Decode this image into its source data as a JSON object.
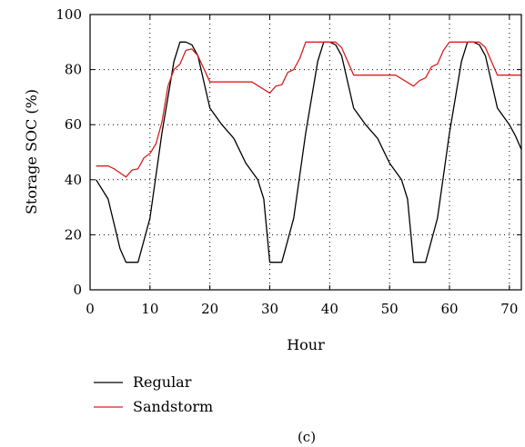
{
  "chart_data": {
    "type": "line",
    "xlabel": "Hour",
    "ylabel": "Storage SOC (%)",
    "xlim": [
      0,
      72
    ],
    "ylim": [
      0,
      100
    ],
    "xticks": [
      0,
      10,
      20,
      30,
      40,
      50,
      60,
      70
    ],
    "yticks": [
      0,
      20,
      40,
      60,
      80,
      100
    ],
    "grid": "dotted",
    "legend_position": "below-left",
    "caption": "(c)",
    "series": [
      {
        "name": "Regular",
        "color": "#000000",
        "points": [
          [
            1,
            40
          ],
          [
            3,
            33
          ],
          [
            5,
            15
          ],
          [
            6,
            10
          ],
          [
            8,
            10
          ],
          [
            10,
            26
          ],
          [
            12,
            57
          ],
          [
            14,
            83
          ],
          [
            15,
            90
          ],
          [
            16,
            90
          ],
          [
            17,
            89
          ],
          [
            18,
            85
          ],
          [
            20,
            66
          ],
          [
            22,
            60
          ],
          [
            24,
            55
          ],
          [
            26,
            46
          ],
          [
            28,
            40
          ],
          [
            29,
            33
          ],
          [
            30,
            10
          ],
          [
            32,
            10
          ],
          [
            34,
            26
          ],
          [
            36,
            57
          ],
          [
            38,
            83
          ],
          [
            39,
            90
          ],
          [
            40,
            90
          ],
          [
            41,
            89
          ],
          [
            42,
            85
          ],
          [
            44,
            66
          ],
          [
            46,
            60
          ],
          [
            48,
            55
          ],
          [
            50,
            46
          ],
          [
            52,
            40
          ],
          [
            53,
            33
          ],
          [
            54,
            10
          ],
          [
            56,
            10
          ],
          [
            58,
            26
          ],
          [
            60,
            57
          ],
          [
            62,
            83
          ],
          [
            63,
            90
          ],
          [
            64,
            90
          ],
          [
            65,
            89
          ],
          [
            66,
            85
          ],
          [
            68,
            66
          ],
          [
            70,
            60
          ],
          [
            71,
            56
          ],
          [
            72,
            51
          ]
        ]
      },
      {
        "name": "Sandstorm",
        "color": "#d62020",
        "points": [
          [
            1,
            45
          ],
          [
            3,
            45
          ],
          [
            4,
            44
          ],
          [
            6,
            41
          ],
          [
            7,
            43.5
          ],
          [
            8,
            44
          ],
          [
            9,
            48
          ],
          [
            10,
            49.5
          ],
          [
            11,
            53
          ],
          [
            12,
            61
          ],
          [
            13,
            74
          ],
          [
            14,
            80
          ],
          [
            15,
            82
          ],
          [
            16,
            87
          ],
          [
            17,
            87.5
          ],
          [
            18,
            85
          ],
          [
            20,
            75.5
          ],
          [
            22,
            75.5
          ],
          [
            24,
            75.5
          ],
          [
            27,
            75.5
          ],
          [
            30,
            71.5
          ],
          [
            31,
            74
          ],
          [
            32,
            74.5
          ],
          [
            33,
            79
          ],
          [
            34,
            80
          ],
          [
            35,
            84
          ],
          [
            36,
            90
          ],
          [
            38,
            90
          ],
          [
            40,
            90
          ],
          [
            41,
            90
          ],
          [
            42,
            88
          ],
          [
            44,
            78
          ],
          [
            46,
            78
          ],
          [
            48,
            78
          ],
          [
            51,
            78
          ],
          [
            54,
            74
          ],
          [
            55,
            76
          ],
          [
            56,
            77
          ],
          [
            57,
            81
          ],
          [
            58,
            82
          ],
          [
            59,
            87
          ],
          [
            60,
            90
          ],
          [
            62,
            90
          ],
          [
            65,
            90
          ],
          [
            66,
            88
          ],
          [
            68,
            78
          ],
          [
            70,
            78
          ],
          [
            72,
            78
          ]
        ]
      }
    ]
  }
}
